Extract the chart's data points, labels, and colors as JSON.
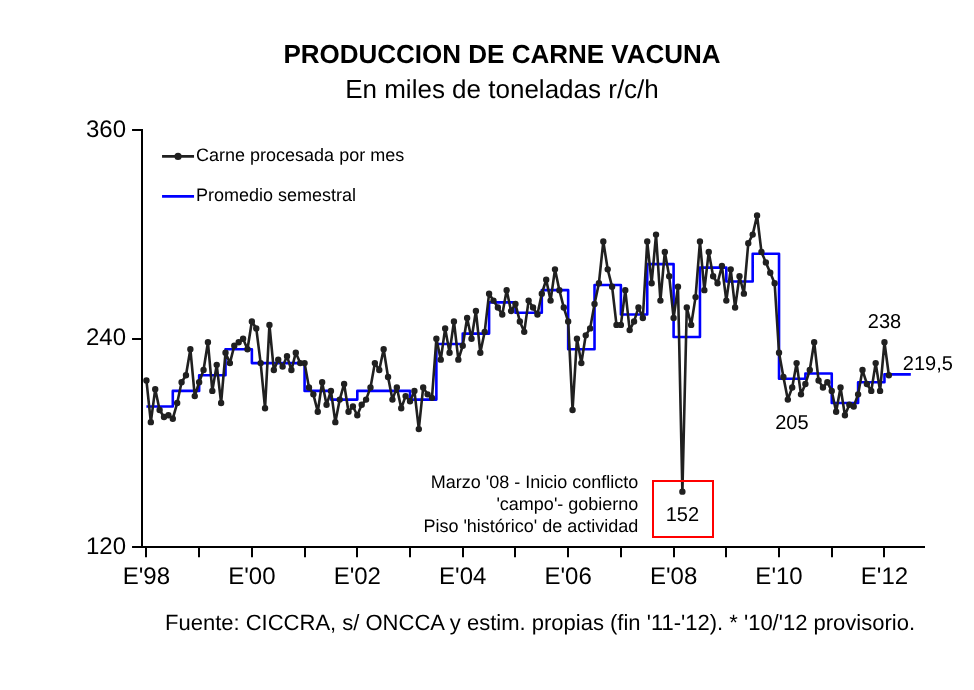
{
  "chart_data": {
    "type": "line",
    "title": "PRODUCCION DE CARNE VACUNA",
    "subtitle": "En miles de toneladas r/c/h",
    "xlim": [
      "1997-12",
      "2012-10"
    ],
    "xticks": [
      {
        "value": "1998-01",
        "label": "E'98"
      },
      {
        "value": "1999-01",
        "label": null
      },
      {
        "value": "2000-01",
        "label": "E'00"
      },
      {
        "value": "2001-01",
        "label": null
      },
      {
        "value": "2002-01",
        "label": "E'02"
      },
      {
        "value": "2003-01",
        "label": null
      },
      {
        "value": "2004-01",
        "label": "E'04"
      },
      {
        "value": "2005-01",
        "label": null
      },
      {
        "value": "2006-01",
        "label": "E'06"
      },
      {
        "value": "2007-01",
        "label": null
      },
      {
        "value": "2008-01",
        "label": "E'08"
      },
      {
        "value": "2009-01",
        "label": null
      },
      {
        "value": "2010-01",
        "label": "E'10"
      },
      {
        "value": "2011-01",
        "label": null
      },
      {
        "value": "2012-01",
        "label": "E'12"
      }
    ],
    "ylim": [
      120,
      360
    ],
    "yticks": [
      120,
      240,
      360
    ],
    "grid": false,
    "legend": "top left",
    "series": [
      {
        "name": "Carne procesada por mes",
        "color": "#202020",
        "marker": "circle",
        "x": [
          "1998-01",
          "1998-02",
          "1998-03",
          "1998-04",
          "1998-05",
          "1998-06",
          "1998-07",
          "1998-08",
          "1998-09",
          "1998-10",
          "1998-11",
          "1998-12",
          "1999-01",
          "1999-02",
          "1999-03",
          "1999-04",
          "1999-05",
          "1999-06",
          "1999-07",
          "1999-08",
          "1999-09",
          "1999-10",
          "1999-11",
          "1999-12",
          "2000-01",
          "2000-02",
          "2000-03",
          "2000-04",
          "2000-05",
          "2000-06",
          "2000-07",
          "2000-08",
          "2000-09",
          "2000-10",
          "2000-11",
          "2000-12",
          "2001-01",
          "2001-02",
          "2001-03",
          "2001-04",
          "2001-05",
          "2001-06",
          "2001-07",
          "2001-08",
          "2001-09",
          "2001-10",
          "2001-11",
          "2001-12",
          "2002-01",
          "2002-02",
          "2002-03",
          "2002-04",
          "2002-05",
          "2002-06",
          "2002-07",
          "2002-08",
          "2002-09",
          "2002-10",
          "2002-11",
          "2002-12",
          "2003-01",
          "2003-02",
          "2003-03",
          "2003-04",
          "2003-05",
          "2003-06",
          "2003-07",
          "2003-08",
          "2003-09",
          "2003-10",
          "2003-11",
          "2003-12",
          "2004-01",
          "2004-02",
          "2004-03",
          "2004-04",
          "2004-05",
          "2004-06",
          "2004-07",
          "2004-08",
          "2004-09",
          "2004-10",
          "2004-11",
          "2004-12",
          "2005-01",
          "2005-02",
          "2005-03",
          "2005-04",
          "2005-05",
          "2005-06",
          "2005-07",
          "2005-08",
          "2005-09",
          "2005-10",
          "2005-11",
          "2005-12",
          "2006-01",
          "2006-02",
          "2006-03",
          "2006-04",
          "2006-05",
          "2006-06",
          "2006-07",
          "2006-08",
          "2006-09",
          "2006-10",
          "2006-11",
          "2006-12",
          "2007-01",
          "2007-02",
          "2007-03",
          "2007-04",
          "2007-05",
          "2007-06",
          "2007-07",
          "2007-08",
          "2007-09",
          "2007-10",
          "2007-11",
          "2007-12",
          "2008-01",
          "2008-02",
          "2008-03",
          "2008-04",
          "2008-05",
          "2008-06",
          "2008-07",
          "2008-08",
          "2008-09",
          "2008-10",
          "2008-11",
          "2008-12",
          "2009-01",
          "2009-02",
          "2009-03",
          "2009-04",
          "2009-05",
          "2009-06",
          "2009-07",
          "2009-08",
          "2009-09",
          "2009-10",
          "2009-11",
          "2009-12",
          "2010-01",
          "2010-02",
          "2010-03",
          "2010-04",
          "2010-05",
          "2010-06",
          "2010-07",
          "2010-08",
          "2010-09",
          "2010-10",
          "2010-11",
          "2010-12",
          "2011-01",
          "2011-02",
          "2011-03",
          "2011-04",
          "2011-05",
          "2011-06",
          "2011-07",
          "2011-08",
          "2011-09",
          "2011-10",
          "2011-11",
          "2011-12",
          "2012-01",
          "2012-02"
        ],
        "values": [
          216,
          192,
          211,
          199,
          195,
          196,
          194,
          203,
          215,
          219,
          234,
          207,
          215,
          222,
          238,
          210,
          225,
          203,
          232,
          226,
          236,
          238,
          240,
          234,
          250,
          246,
          226,
          200,
          248,
          222,
          228,
          224,
          230,
          222,
          232,
          226,
          226,
          212,
          208,
          198,
          215,
          202,
          210,
          192,
          205,
          214,
          198,
          201,
          196,
          202,
          205,
          212,
          226,
          222,
          234,
          218,
          205,
          212,
          200,
          207,
          204,
          210,
          188,
          212,
          208,
          206,
          240,
          228,
          246,
          232,
          250,
          228,
          236,
          252,
          240,
          256,
          232,
          244,
          266,
          262,
          258,
          254,
          268,
          256,
          260,
          250,
          244,
          262,
          258,
          254,
          266,
          274,
          262,
          280,
          268,
          258,
          250,
          199,
          240,
          226,
          242,
          246,
          260,
          272,
          296,
          280,
          270,
          248,
          248,
          268,
          245,
          250,
          258,
          252,
          296,
          272,
          300,
          262,
          290,
          276,
          252,
          270,
          152,
          258,
          248,
          264,
          296,
          268,
          290,
          276,
          272,
          282,
          262,
          280,
          258,
          276,
          266,
          295,
          300,
          311,
          290,
          284,
          278,
          272,
          232,
          218,
          205,
          212,
          226,
          208,
          214,
          222,
          238,
          216,
          212,
          215,
          210,
          198,
          212,
          196,
          202,
          201,
          208,
          222,
          214,
          210,
          226,
          210,
          238,
          219
        ]
      },
      {
        "name": "Promedio semestral",
        "type": "step",
        "color": "#0000ff",
        "marker": "none",
        "x": [
          "1998-01",
          "1998-07",
          "1999-01",
          "1999-07",
          "2000-01",
          "2000-07",
          "2001-01",
          "2001-07",
          "2002-01",
          "2002-07",
          "2003-01",
          "2003-07",
          "2004-01",
          "2004-07",
          "2005-01",
          "2005-07",
          "2006-01",
          "2006-07",
          "2007-01",
          "2007-07",
          "2008-01",
          "2008-07",
          "2009-01",
          "2009-07",
          "2010-01",
          "2010-07",
          "2011-01",
          "2011-07",
          "2012-01",
          "2012-07"
        ],
        "values": [
          201,
          210,
          219,
          234,
          226,
          226,
          210,
          205,
          210,
          210,
          205,
          237,
          243,
          261,
          255,
          268,
          234,
          271,
          254,
          283,
          241,
          281,
          273,
          289,
          217,
          220,
          203,
          215,
          219.5,
          219.5
        ]
      }
    ],
    "annotations": [
      {
        "text": "Marzo '08 - Inicio conflicto\n'campo'- gobierno\nPiso 'histórico' de actividad",
        "x": "2008-03",
        "y": 152
      },
      {
        "text": "152",
        "x": "2008-03",
        "y": 152
      },
      {
        "text": "205",
        "x": "2010-03",
        "y": 205
      },
      {
        "text": "238",
        "x": "2012-01",
        "y": 238
      },
      {
        "text": "219,5",
        "x": "2012-07",
        "y": 219.5
      },
      "Fuente: CICCRA, s/ ONCCA y estim. propias (fin '11-'12). * '10/'12 provisorio."
    ]
  }
}
